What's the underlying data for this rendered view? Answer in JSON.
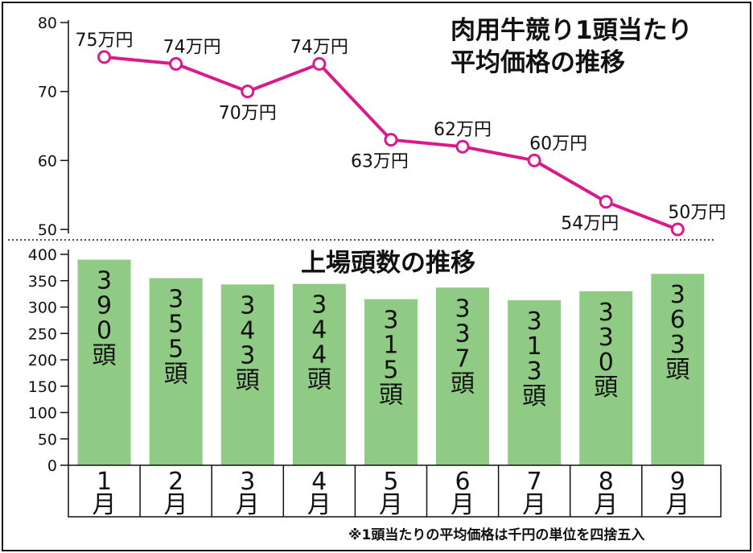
{
  "chart_data": [
    {
      "type": "line",
      "title_lines": [
        "肉用牛競り1頭当たり",
        "平均価格の推移"
      ],
      "x": [
        "1月",
        "2月",
        "3月",
        "4月",
        "5月",
        "6月",
        "7月",
        "8月",
        "9月"
      ],
      "values": [
        75,
        74,
        70,
        74,
        63,
        62,
        60,
        54,
        50
      ],
      "data_labels": [
        "75万円",
        "74万円",
        "70万円",
        "74万円",
        "63万円",
        "62万円",
        "60万円",
        "54万円",
        "50万円"
      ],
      "yticks": [
        "80",
        "70",
        "60",
        "50"
      ],
      "ylim": [
        50,
        80
      ],
      "color": "#d81b8c"
    },
    {
      "type": "bar",
      "title": "上場頭数の推移",
      "categories": [
        "1月",
        "2月",
        "3月",
        "4月",
        "5月",
        "6月",
        "7月",
        "8月",
        "9月"
      ],
      "values": [
        390,
        355,
        343,
        344,
        315,
        337,
        313,
        330,
        363
      ],
      "bar_labels": [
        "390頭",
        "355頭",
        "343頭",
        "344頭",
        "315頭",
        "337頭",
        "313頭",
        "330頭",
        "363頭"
      ],
      "yticks": [
        "400",
        "350",
        "300",
        "250",
        "200",
        "150",
        "100",
        "50",
        "0"
      ],
      "ylim": [
        0,
        400
      ],
      "color": "#8fcb85"
    }
  ],
  "note": "※1頭当たりの平均価格は千円の単位を四捨五入"
}
